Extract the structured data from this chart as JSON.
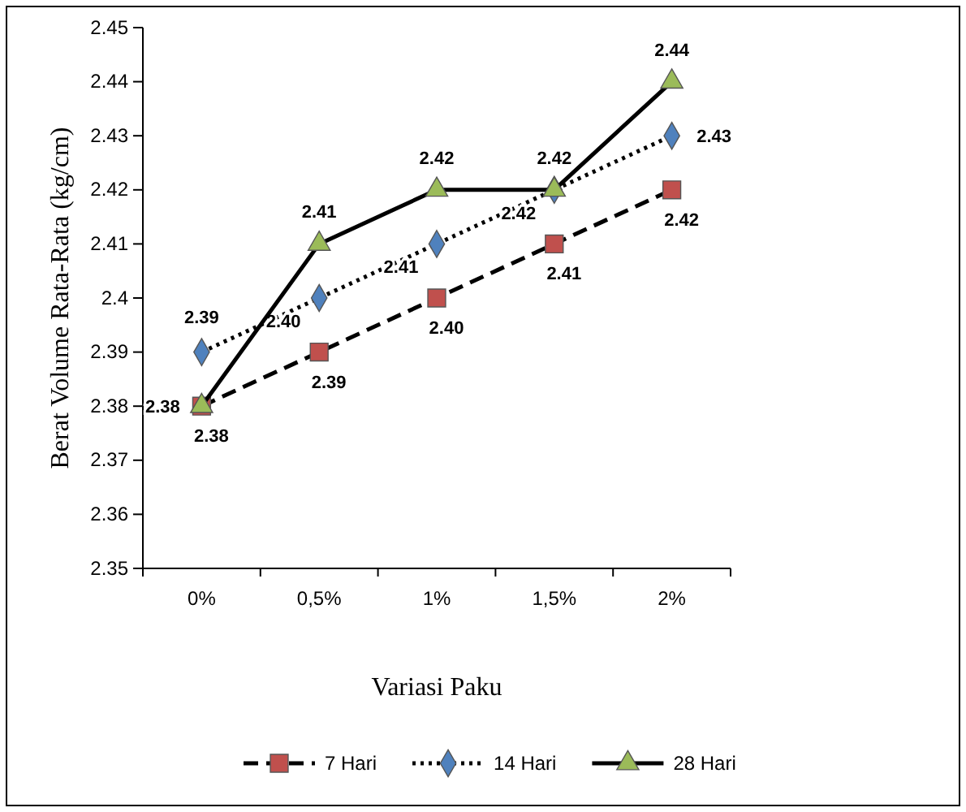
{
  "chart_data": {
    "type": "line",
    "xlabel": "Variasi Paku",
    "ylabel": "Berat Volume Rata-Rata  (kg/cm)",
    "categories": [
      "0%",
      "0,5%",
      "1%",
      "1,5%",
      "2%"
    ],
    "ylim": [
      2.35,
      2.45
    ],
    "yticks": [
      2.35,
      2.36,
      2.37,
      2.38,
      2.39,
      2.4,
      2.41,
      2.42,
      2.43,
      2.44,
      2.45
    ],
    "grid": false,
    "legend": "bottom",
    "series": [
      {
        "name": "7 Hari",
        "color": "#c0504d",
        "marker": "square",
        "line_style": "dashed",
        "values": [
          2.38,
          2.39,
          2.4,
          2.41,
          2.42
        ],
        "value_labels": [
          "2.38",
          "2.39",
          "2.40",
          "2.41",
          "2.42"
        ]
      },
      {
        "name": "14 Hari",
        "color": "#4f81bd",
        "marker": "diamond",
        "line_style": "dotted",
        "values": [
          2.39,
          2.4,
          2.41,
          2.42,
          2.43
        ],
        "value_labels": [
          "2.39",
          "2.40",
          "2.41",
          "2.42",
          "2.43"
        ]
      },
      {
        "name": "28 Hari",
        "color": "#9bbb59",
        "marker": "triangle",
        "line_style": "solid",
        "values": [
          2.38,
          2.41,
          2.42,
          2.42,
          2.44
        ],
        "value_labels": [
          "2.38",
          "2.41",
          "2.42",
          "2.42",
          "2.44"
        ]
      }
    ]
  }
}
